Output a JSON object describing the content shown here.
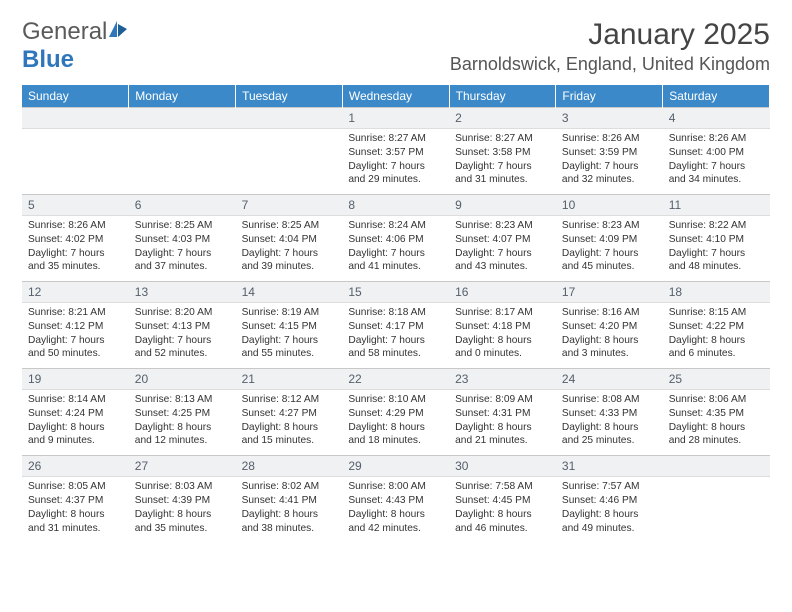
{
  "brand": {
    "part1": "General",
    "part2": "Blue"
  },
  "title": "January 2025",
  "location": "Barnoldswick, England, United Kingdom",
  "colors": {
    "header_bg": "#3b89c9",
    "header_text": "#ffffff",
    "daynum_bg": "#eff1f3",
    "daynum_text": "#55606c",
    "border": "#c8c8c8",
    "brand_gray": "#5a5a5a",
    "brand_blue": "#2f77bb"
  },
  "weekdays": [
    "Sunday",
    "Monday",
    "Tuesday",
    "Wednesday",
    "Thursday",
    "Friday",
    "Saturday"
  ],
  "weeks": [
    [
      {
        "blank": true
      },
      {
        "blank": true
      },
      {
        "blank": true
      },
      {
        "day": "1",
        "l1": "Sunrise: 8:27 AM",
        "l2": "Sunset: 3:57 PM",
        "l3": "Daylight: 7 hours",
        "l4": "and 29 minutes."
      },
      {
        "day": "2",
        "l1": "Sunrise: 8:27 AM",
        "l2": "Sunset: 3:58 PM",
        "l3": "Daylight: 7 hours",
        "l4": "and 31 minutes."
      },
      {
        "day": "3",
        "l1": "Sunrise: 8:26 AM",
        "l2": "Sunset: 3:59 PM",
        "l3": "Daylight: 7 hours",
        "l4": "and 32 minutes."
      },
      {
        "day": "4",
        "l1": "Sunrise: 8:26 AM",
        "l2": "Sunset: 4:00 PM",
        "l3": "Daylight: 7 hours",
        "l4": "and 34 minutes."
      }
    ],
    [
      {
        "day": "5",
        "l1": "Sunrise: 8:26 AM",
        "l2": "Sunset: 4:02 PM",
        "l3": "Daylight: 7 hours",
        "l4": "and 35 minutes."
      },
      {
        "day": "6",
        "l1": "Sunrise: 8:25 AM",
        "l2": "Sunset: 4:03 PM",
        "l3": "Daylight: 7 hours",
        "l4": "and 37 minutes."
      },
      {
        "day": "7",
        "l1": "Sunrise: 8:25 AM",
        "l2": "Sunset: 4:04 PM",
        "l3": "Daylight: 7 hours",
        "l4": "and 39 minutes."
      },
      {
        "day": "8",
        "l1": "Sunrise: 8:24 AM",
        "l2": "Sunset: 4:06 PM",
        "l3": "Daylight: 7 hours",
        "l4": "and 41 minutes."
      },
      {
        "day": "9",
        "l1": "Sunrise: 8:23 AM",
        "l2": "Sunset: 4:07 PM",
        "l3": "Daylight: 7 hours",
        "l4": "and 43 minutes."
      },
      {
        "day": "10",
        "l1": "Sunrise: 8:23 AM",
        "l2": "Sunset: 4:09 PM",
        "l3": "Daylight: 7 hours",
        "l4": "and 45 minutes."
      },
      {
        "day": "11",
        "l1": "Sunrise: 8:22 AM",
        "l2": "Sunset: 4:10 PM",
        "l3": "Daylight: 7 hours",
        "l4": "and 48 minutes."
      }
    ],
    [
      {
        "day": "12",
        "l1": "Sunrise: 8:21 AM",
        "l2": "Sunset: 4:12 PM",
        "l3": "Daylight: 7 hours",
        "l4": "and 50 minutes."
      },
      {
        "day": "13",
        "l1": "Sunrise: 8:20 AM",
        "l2": "Sunset: 4:13 PM",
        "l3": "Daylight: 7 hours",
        "l4": "and 52 minutes."
      },
      {
        "day": "14",
        "l1": "Sunrise: 8:19 AM",
        "l2": "Sunset: 4:15 PM",
        "l3": "Daylight: 7 hours",
        "l4": "and 55 minutes."
      },
      {
        "day": "15",
        "l1": "Sunrise: 8:18 AM",
        "l2": "Sunset: 4:17 PM",
        "l3": "Daylight: 7 hours",
        "l4": "and 58 minutes."
      },
      {
        "day": "16",
        "l1": "Sunrise: 8:17 AM",
        "l2": "Sunset: 4:18 PM",
        "l3": "Daylight: 8 hours",
        "l4": "and 0 minutes."
      },
      {
        "day": "17",
        "l1": "Sunrise: 8:16 AM",
        "l2": "Sunset: 4:20 PM",
        "l3": "Daylight: 8 hours",
        "l4": "and 3 minutes."
      },
      {
        "day": "18",
        "l1": "Sunrise: 8:15 AM",
        "l2": "Sunset: 4:22 PM",
        "l3": "Daylight: 8 hours",
        "l4": "and 6 minutes."
      }
    ],
    [
      {
        "day": "19",
        "l1": "Sunrise: 8:14 AM",
        "l2": "Sunset: 4:24 PM",
        "l3": "Daylight: 8 hours",
        "l4": "and 9 minutes."
      },
      {
        "day": "20",
        "l1": "Sunrise: 8:13 AM",
        "l2": "Sunset: 4:25 PM",
        "l3": "Daylight: 8 hours",
        "l4": "and 12 minutes."
      },
      {
        "day": "21",
        "l1": "Sunrise: 8:12 AM",
        "l2": "Sunset: 4:27 PM",
        "l3": "Daylight: 8 hours",
        "l4": "and 15 minutes."
      },
      {
        "day": "22",
        "l1": "Sunrise: 8:10 AM",
        "l2": "Sunset: 4:29 PM",
        "l3": "Daylight: 8 hours",
        "l4": "and 18 minutes."
      },
      {
        "day": "23",
        "l1": "Sunrise: 8:09 AM",
        "l2": "Sunset: 4:31 PM",
        "l3": "Daylight: 8 hours",
        "l4": "and 21 minutes."
      },
      {
        "day": "24",
        "l1": "Sunrise: 8:08 AM",
        "l2": "Sunset: 4:33 PM",
        "l3": "Daylight: 8 hours",
        "l4": "and 25 minutes."
      },
      {
        "day": "25",
        "l1": "Sunrise: 8:06 AM",
        "l2": "Sunset: 4:35 PM",
        "l3": "Daylight: 8 hours",
        "l4": "and 28 minutes."
      }
    ],
    [
      {
        "day": "26",
        "l1": "Sunrise: 8:05 AM",
        "l2": "Sunset: 4:37 PM",
        "l3": "Daylight: 8 hours",
        "l4": "and 31 minutes."
      },
      {
        "day": "27",
        "l1": "Sunrise: 8:03 AM",
        "l2": "Sunset: 4:39 PM",
        "l3": "Daylight: 8 hours",
        "l4": "and 35 minutes."
      },
      {
        "day": "28",
        "l1": "Sunrise: 8:02 AM",
        "l2": "Sunset: 4:41 PM",
        "l3": "Daylight: 8 hours",
        "l4": "and 38 minutes."
      },
      {
        "day": "29",
        "l1": "Sunrise: 8:00 AM",
        "l2": "Sunset: 4:43 PM",
        "l3": "Daylight: 8 hours",
        "l4": "and 42 minutes."
      },
      {
        "day": "30",
        "l1": "Sunrise: 7:58 AM",
        "l2": "Sunset: 4:45 PM",
        "l3": "Daylight: 8 hours",
        "l4": "and 46 minutes."
      },
      {
        "day": "31",
        "l1": "Sunrise: 7:57 AM",
        "l2": "Sunset: 4:46 PM",
        "l3": "Daylight: 8 hours",
        "l4": "and 49 minutes."
      },
      {
        "blank": true
      }
    ]
  ]
}
